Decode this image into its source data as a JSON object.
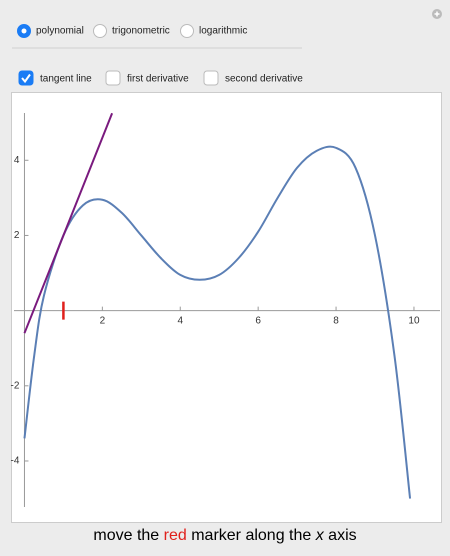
{
  "radio": {
    "options": [
      "polynomial",
      "trigonometric",
      "logarithmic"
    ],
    "selected": 0
  },
  "checkboxes": {
    "options": [
      "tangent line",
      "first derivative",
      "second derivative"
    ],
    "checked": [
      true,
      false,
      false
    ]
  },
  "chart_data": {
    "type": "line",
    "x": [
      0,
      0.25,
      0.5,
      1,
      1.5,
      2,
      2.5,
      3,
      3.5,
      4,
      4.5,
      5,
      5.5,
      6,
      6.5,
      7,
      7.5,
      8,
      8.5,
      9,
      9.5,
      9.9
    ],
    "values": [
      -3.4,
      -1.2,
      0.4,
      2.0,
      2.8,
      2.95,
      2.6,
      2.0,
      1.4,
      0.95,
      0.82,
      0.95,
      1.4,
      2.1,
      3.0,
      3.8,
      4.25,
      4.33,
      3.8,
      2.0,
      -1.2,
      -5.0
    ],
    "color": "#5b7fb5",
    "tangent": {
      "x": [
        0,
        2.25
      ],
      "values": [
        -0.6,
        5.25
      ],
      "color": "#7a1a7e"
    },
    "marker_x": 1,
    "marker_color": "#e0201c",
    "xlim": [
      -0.32,
      10.72
    ],
    "ylim": [
      -5.65,
      5.79
    ],
    "xticks": [
      2,
      4,
      6,
      8,
      10
    ],
    "yticks": [
      -4,
      -2,
      2,
      4
    ],
    "caption": [
      "move the ",
      "red",
      " marker along the ",
      "x",
      " axis"
    ]
  }
}
